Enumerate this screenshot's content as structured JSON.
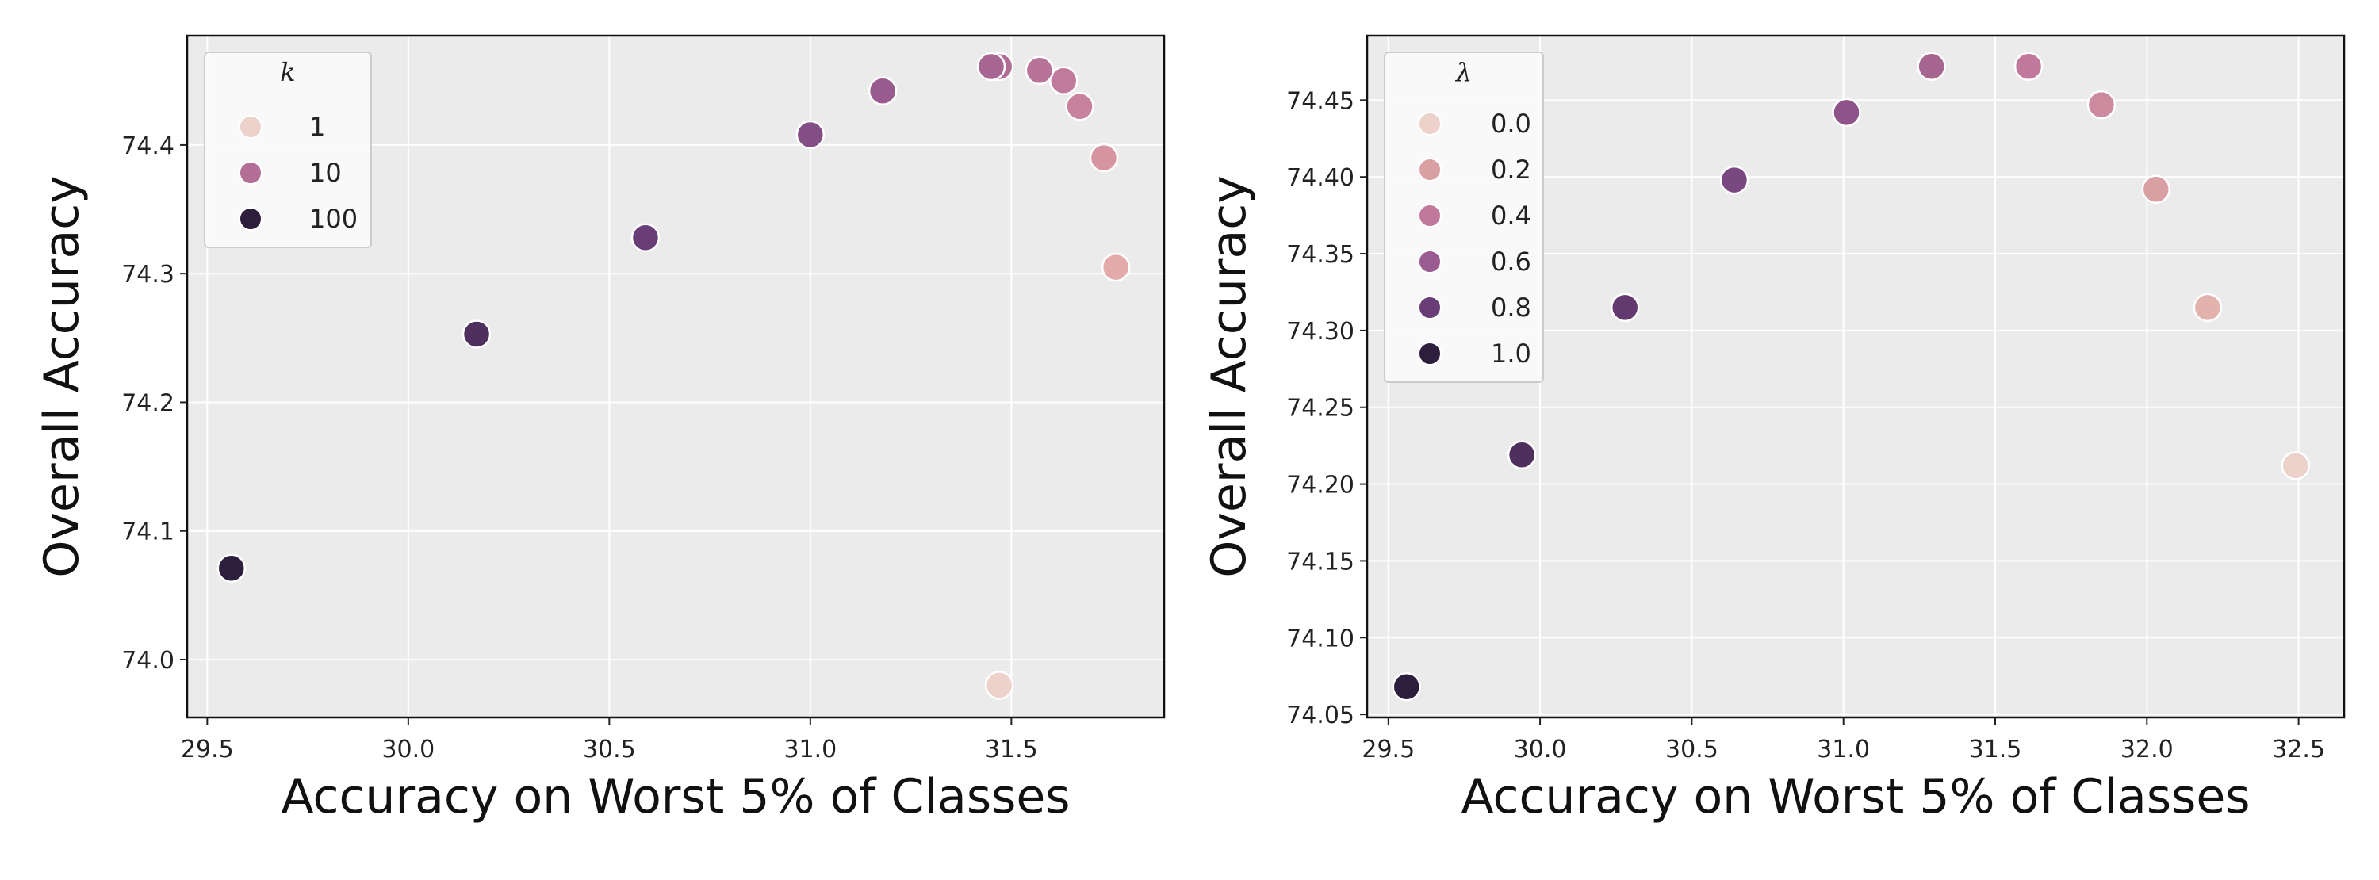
{
  "chart_data": [
    {
      "type": "scatter",
      "title": "",
      "xlabel": "Accuracy on Worst 5% of Classes",
      "ylabel": "Overall Accuracy",
      "xlim": [
        29.45,
        31.88
      ],
      "ylim": [
        73.955,
        74.485
      ],
      "xticks": [
        "29.5",
        "30.0",
        "30.5",
        "31.0",
        "31.5"
      ],
      "yticks": [
        "74.0",
        "74.1",
        "74.2",
        "74.3",
        "74.4"
      ],
      "grid": true,
      "legend": {
        "title": "k",
        "placement": "top-left",
        "entries": [
          {
            "label": "1",
            "color": "#EDD1CB"
          },
          {
            "label": "10",
            "color": "#B36E95"
          },
          {
            "label": "100",
            "color": "#2D1E3E"
          }
        ]
      },
      "points": [
        {
          "x": 31.47,
          "y": 73.98,
          "color": "#EDD1CB"
        },
        {
          "x": 31.76,
          "y": 74.305,
          "color": "#E2ABAA"
        },
        {
          "x": 31.73,
          "y": 74.39,
          "color": "#D5949F"
        },
        {
          "x": 31.67,
          "y": 74.43,
          "color": "#C9829D"
        },
        {
          "x": 31.63,
          "y": 74.45,
          "color": "#C07A9D"
        },
        {
          "x": 31.57,
          "y": 74.458,
          "color": "#B87399"
        },
        {
          "x": 31.47,
          "y": 74.461,
          "color": "#AE6C96"
        },
        {
          "x": 31.45,
          "y": 74.461,
          "color": "#A86693"
        },
        {
          "x": 31.18,
          "y": 74.442,
          "color": "#985A8F"
        },
        {
          "x": 31.0,
          "y": 74.408,
          "color": "#834E85"
        },
        {
          "x": 30.59,
          "y": 74.328,
          "color": "#6A3D76"
        },
        {
          "x": 30.17,
          "y": 74.253,
          "color": "#4E2F5E"
        },
        {
          "x": 29.56,
          "y": 74.071,
          "color": "#2D1E3E"
        }
      ]
    },
    {
      "type": "scatter",
      "title": "",
      "xlabel": "Accuracy on Worst 5% of Classes",
      "ylabel": "Overall Accuracy",
      "xlim": [
        29.43,
        32.65
      ],
      "ylim": [
        74.048,
        74.492
      ],
      "xticks": [
        "29.5",
        "30.0",
        "30.5",
        "31.0",
        "31.5",
        "32.0",
        "32.5"
      ],
      "yticks": [
        "74.05",
        "74.10",
        "74.15",
        "74.20",
        "74.25",
        "74.30",
        "74.35",
        "74.40",
        "74.45"
      ],
      "grid": true,
      "legend": {
        "title": "λ",
        "placement": "top-left",
        "entries": [
          {
            "label": "0.0",
            "color": "#EDD1CB"
          },
          {
            "label": "0.2",
            "color": "#D9A0A4"
          },
          {
            "label": "0.4",
            "color": "#C0799C"
          },
          {
            "label": "0.6",
            "color": "#9A5B90"
          },
          {
            "label": "0.8",
            "color": "#6A3D76"
          },
          {
            "label": "1.0",
            "color": "#2D1E3E"
          }
        ]
      },
      "points": [
        {
          "x": 32.49,
          "y": 74.212,
          "color": "#EDD1CB"
        },
        {
          "x": 32.2,
          "y": 74.315,
          "color": "#E2B2AC"
        },
        {
          "x": 32.03,
          "y": 74.392,
          "color": "#D9A0A4"
        },
        {
          "x": 31.85,
          "y": 74.447,
          "color": "#CC8A9F"
        },
        {
          "x": 31.61,
          "y": 74.472,
          "color": "#C0799C"
        },
        {
          "x": 31.29,
          "y": 74.472,
          "color": "#A6658F"
        },
        {
          "x": 31.01,
          "y": 74.442,
          "color": "#8E5389"
        },
        {
          "x": 30.64,
          "y": 74.398,
          "color": "#7A4880"
        },
        {
          "x": 30.28,
          "y": 74.315,
          "color": "#633A70"
        },
        {
          "x": 29.94,
          "y": 74.219,
          "color": "#4E2F5E"
        },
        {
          "x": 29.56,
          "y": 74.068,
          "color": "#2D1E3E"
        }
      ]
    }
  ]
}
